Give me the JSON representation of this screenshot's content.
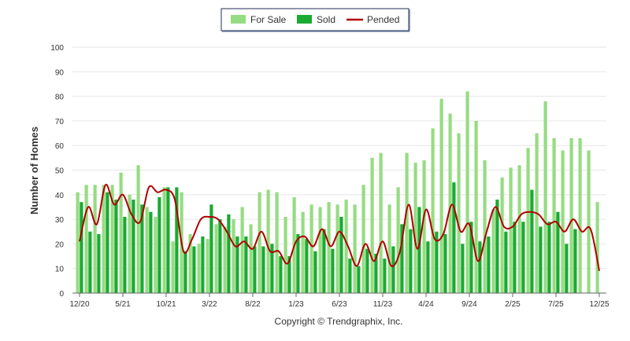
{
  "chart_data": {
    "type": "bar",
    "title": "",
    "ylabel": "Number of Homes",
    "xlabel": "",
    "ylim": [
      0,
      100
    ],
    "yticks": [
      0,
      10,
      20,
      30,
      40,
      50,
      60,
      70,
      80,
      90,
      100
    ],
    "grid": true,
    "legend_position": "top-center",
    "xtick_labels": [
      {
        "index": 0,
        "label": "12/20"
      },
      {
        "index": 5,
        "label": "5/21"
      },
      {
        "index": 10,
        "label": "10/21"
      },
      {
        "index": 15,
        "label": "3/22"
      },
      {
        "index": 20,
        "label": "8/22"
      },
      {
        "index": 25,
        "label": "1/23"
      },
      {
        "index": 30,
        "label": "6/23"
      },
      {
        "index": 35,
        "label": "11/23"
      },
      {
        "index": 40,
        "label": "4/24"
      },
      {
        "index": 45,
        "label": "9/24"
      },
      {
        "index": 50,
        "label": "2/25"
      },
      {
        "index": 55,
        "label": "7/25"
      },
      {
        "index": 60,
        "label": "12/25"
      }
    ],
    "months": 61,
    "series": [
      {
        "name": "For Sale",
        "kind": "bar",
        "color": "#96dc82",
        "values": [
          41,
          44,
          44,
          44,
          44,
          49,
          40,
          52,
          35,
          31,
          43,
          21,
          41,
          24,
          20,
          22,
          28,
          27,
          30,
          35,
          28,
          41,
          42,
          41,
          31,
          39,
          33,
          36,
          35,
          37,
          36,
          38,
          36,
          44,
          55,
          57,
          36,
          43,
          57,
          53,
          54,
          67,
          79,
          73,
          65,
          82,
          70,
          54,
          34,
          47,
          51,
          52,
          59,
          65,
          78,
          63,
          58,
          63,
          63,
          58,
          37
        ]
      },
      {
        "name": "Sold",
        "kind": "bar",
        "color": "#1aaa32",
        "values": [
          37,
          25,
          24,
          41,
          38,
          31,
          38,
          36,
          33,
          39,
          43,
          43,
          17,
          19,
          23,
          36,
          30,
          32,
          23,
          23,
          19,
          19,
          20,
          15,
          15,
          24,
          22,
          17,
          26,
          18,
          31,
          14,
          11,
          18,
          16,
          14,
          19,
          28,
          26,
          35,
          21,
          25,
          24,
          45,
          20,
          29,
          21,
          23,
          38,
          25,
          29,
          29,
          42,
          27,
          29,
          33,
          20,
          26,
          0,
          0,
          0
        ]
      },
      {
        "name": "Pended",
        "kind": "line",
        "color": "#b00000",
        "values": [
          21,
          35,
          28,
          44,
          36,
          40,
          32,
          29,
          43,
          41,
          42,
          38,
          17,
          22,
          30,
          31,
          30,
          25,
          19,
          21,
          18,
          25,
          17,
          17,
          12,
          21,
          23,
          19,
          26,
          19,
          25,
          19,
          11,
          20,
          13,
          21,
          11,
          17,
          36,
          18,
          34,
          22,
          24,
          36,
          25,
          28,
          13,
          25,
          35,
          27,
          27,
          32,
          33,
          32,
          28,
          29,
          25,
          30,
          25,
          26,
          9
        ]
      }
    ]
  },
  "legend": [
    {
      "label": "For Sale",
      "color": "#96dc82"
    },
    {
      "label": "Sold",
      "color": "#1aaa32"
    },
    {
      "label": "Pended",
      "color": "#b00000"
    }
  ],
  "copyright": "Copyright © Trendgraphix, Inc."
}
